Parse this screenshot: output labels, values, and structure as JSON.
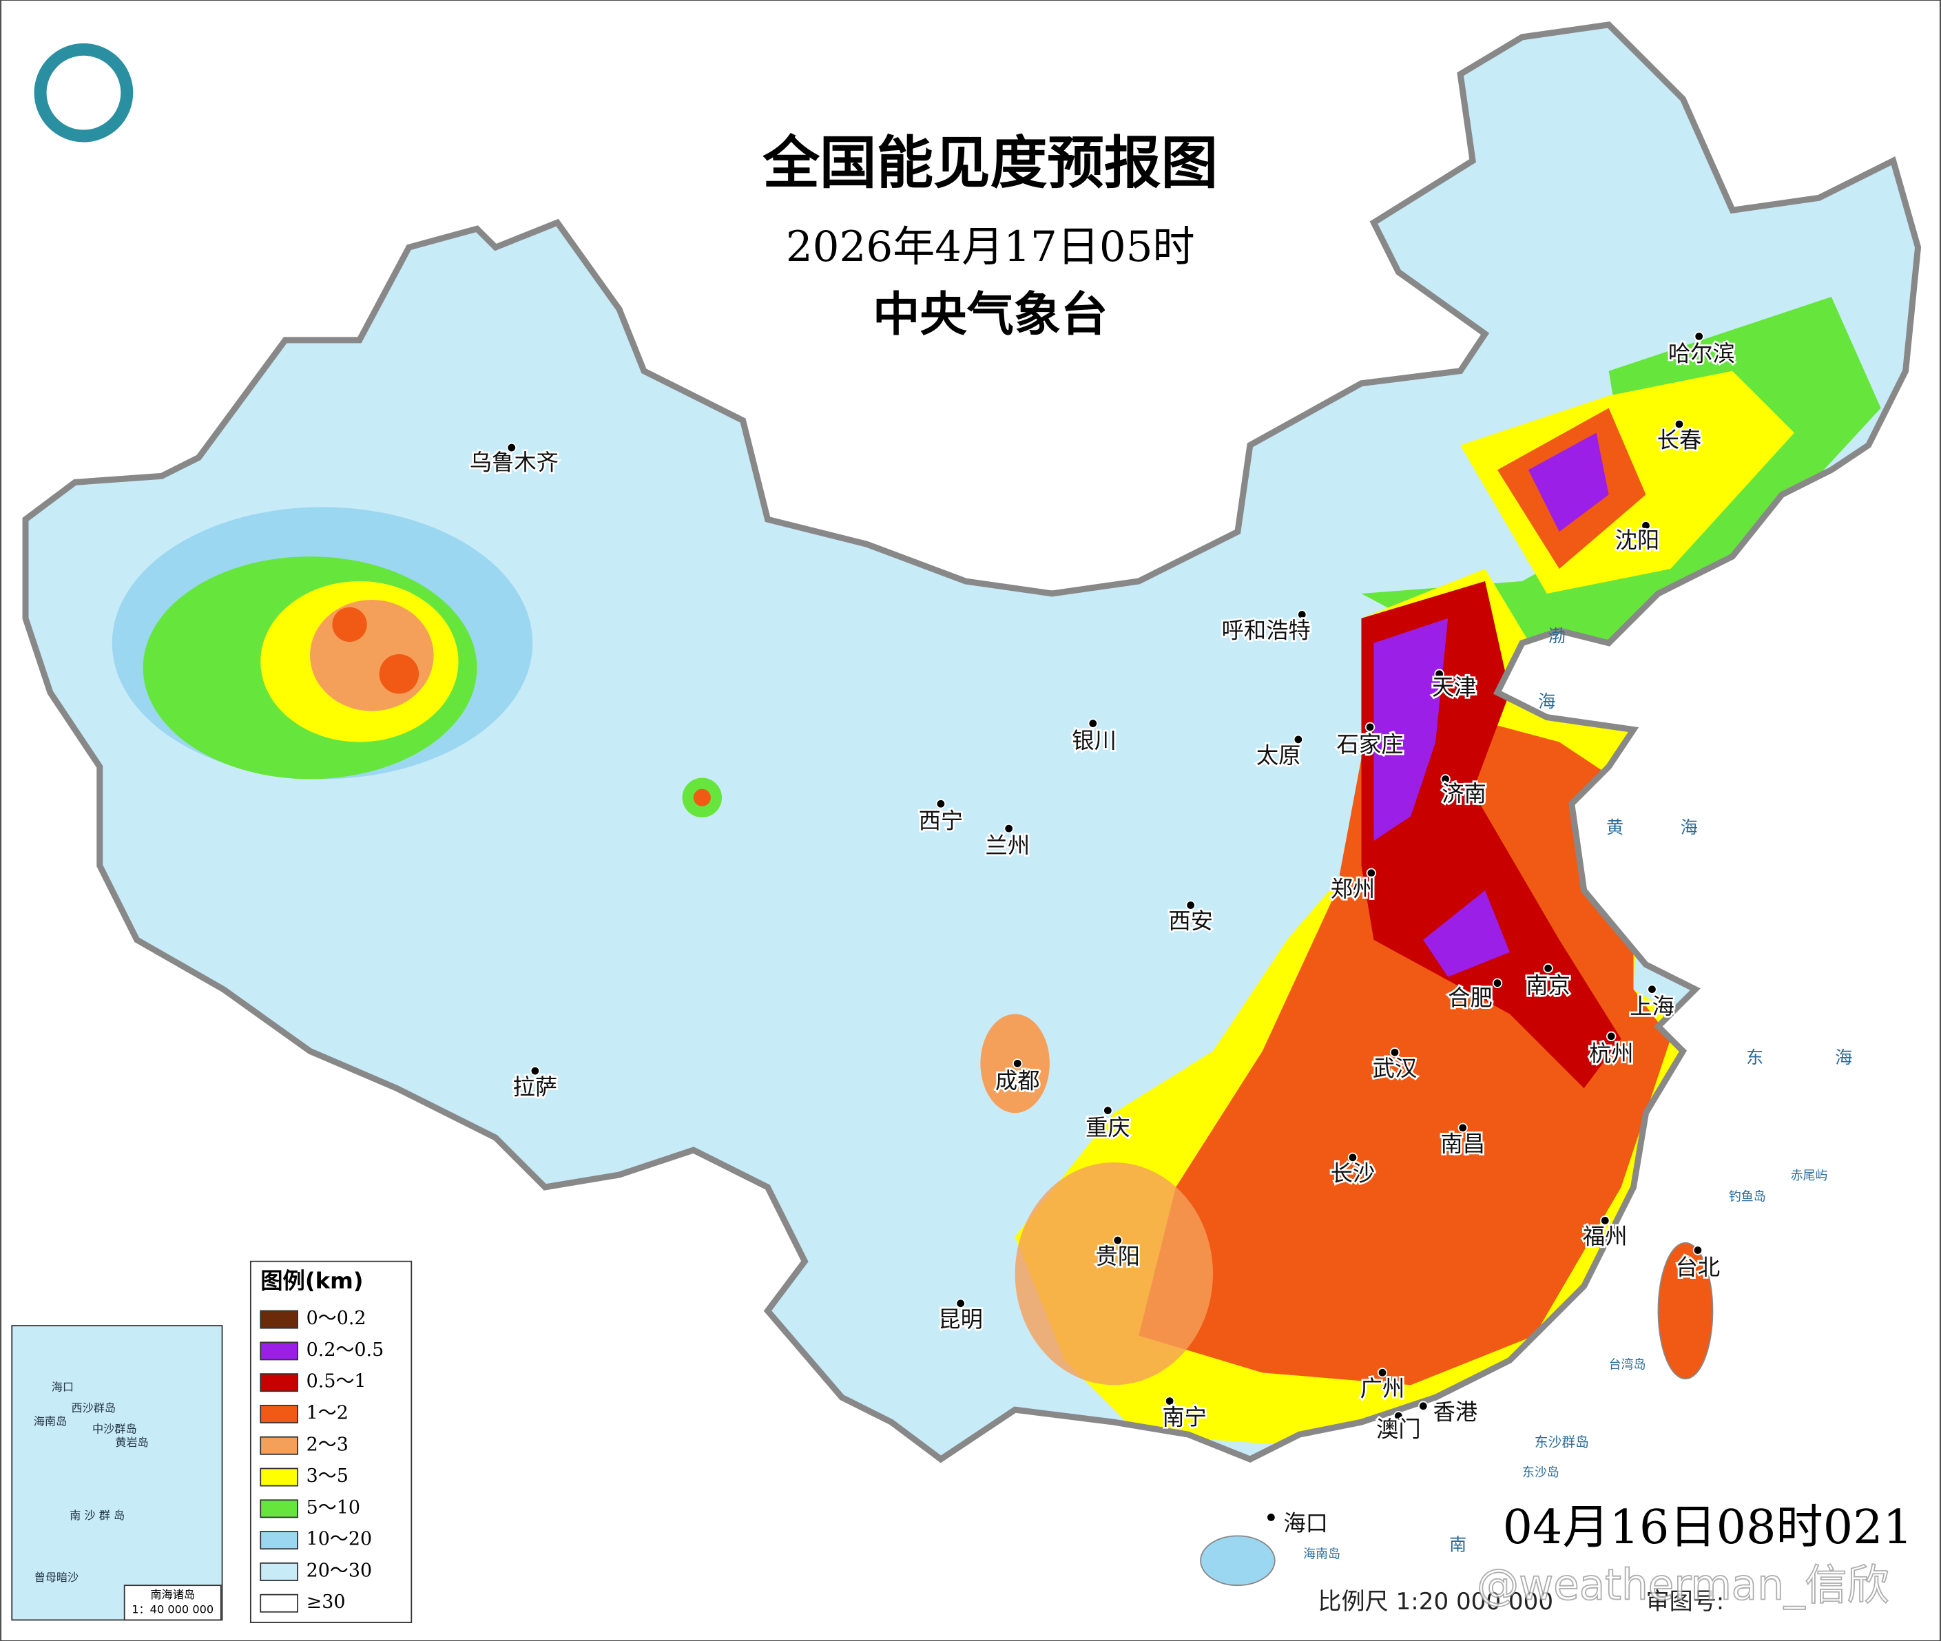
{
  "header": {
    "title": "全国能见度预报图",
    "valid_time": "2026年4月17日05时",
    "issuer": "中央气象台"
  },
  "legend": {
    "title": "图例(km)",
    "items": [
      {
        "label": "0～0.2",
        "color": "#6b2a0a"
      },
      {
        "label": "0.2～0.5",
        "color": "#9b1fe6"
      },
      {
        "label": "0.5～1",
        "color": "#c80000"
      },
      {
        "label": "1～2",
        "color": "#f05a14"
      },
      {
        "label": "2～3",
        "color": "#f5a05a"
      },
      {
        "label": "3～5",
        "color": "#ffff00"
      },
      {
        "label": "5～10",
        "color": "#66e63c"
      },
      {
        "label": "10～20",
        "color": "#9bd7f0"
      },
      {
        "label": "20～30",
        "color": "#c8ebf8"
      },
      {
        "label": "≥30",
        "color": "#ffffff"
      }
    ]
  },
  "cities": [
    "乌鲁木齐",
    "哈尔滨",
    "长春",
    "沈阳",
    "呼和浩特",
    "天津",
    "石家庄",
    "太原",
    "银川",
    "济南",
    "西宁",
    "兰州",
    "郑州",
    "西安",
    "合肥",
    "南京",
    "上海",
    "杭州",
    "武汉",
    "成都",
    "拉萨",
    "重庆",
    "南昌",
    "长沙",
    "贵阳",
    "福州",
    "台北",
    "昆明",
    "广州",
    "香港",
    "澳门",
    "南宁",
    "海口"
  ],
  "places": [
    "渤",
    "海",
    "黄",
    "海",
    "东",
    "海",
    "南",
    "钓鱼岛",
    "赤尾屿",
    "台湾岛",
    "东沙群岛",
    "东沙岛",
    "海南岛"
  ],
  "inset": {
    "title": "南海诸岛",
    "scale": "1：40 000 000",
    "labels": [
      "西沙群岛",
      "中沙群岛",
      "黄岩岛",
      "南 沙 群 岛",
      "曾母暗沙",
      "海口",
      "海南岛"
    ]
  },
  "footer": {
    "issue_time": "04月16日08时021",
    "scale": "比例尺 1:20 000 000",
    "approval": "审图号:",
    "watermark": "@weatherman_信欣"
  }
}
